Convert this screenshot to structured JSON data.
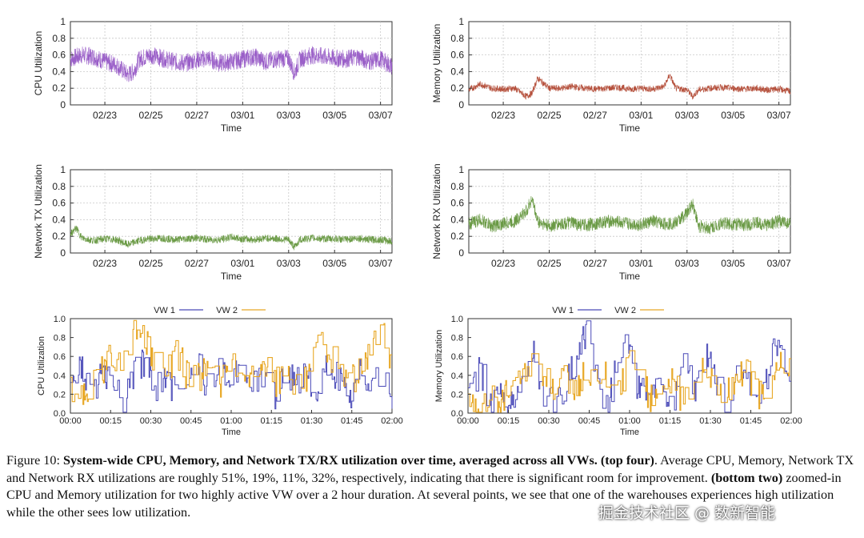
{
  "caption": {
    "label": "Figure 10:",
    "bold": "System-wide CPU, Memory, and Network TX/RX utilization over time, averaged across all VWs. (top four)",
    "part1": ". Average CPU, Memory, Network TX and Network RX utilizations are roughly 51%, 19%, 11%, 32%, respectively, indicating that there is significant room for improvement.",
    "bold2": "(bottom two)",
    "part2": "zoomed-in CPU and Memory utilization for two highly active VW over a 2 hour duration. At several points, we see that one of the warehouses experiences high utilization while the other sees low utilization."
  },
  "watermark": "掘金技术社区 @ 数新智能",
  "chart_data": [
    {
      "id": "cpu-system",
      "type": "line",
      "title": "",
      "xlabel": "Time",
      "ylabel": "CPU Utilization",
      "xlim": [
        "02/21 12:00",
        "03/07 12:00"
      ],
      "ylim": [
        0,
        1
      ],
      "x_ticks": [
        "02/23",
        "02/25",
        "02/27",
        "03/01",
        "03/03",
        "03/05",
        "03/07"
      ],
      "y_ticks": [
        "0",
        "0.2",
        "0.4",
        "0.6",
        "0.8",
        "1"
      ],
      "grid": true,
      "color": "#9a5fc8",
      "series": [
        {
          "x": [
            "02/21 12:00",
            "02/22 00:00",
            "02/22 12:00",
            "02/23 00:00",
            "02/23 12:00",
            "02/24 00:00",
            "02/24 06:00",
            "02/24 12:00",
            "02/25 00:00",
            "02/25 12:00",
            "02/26 00:00",
            "02/26 12:00",
            "02/27 00:00",
            "02/27 12:00",
            "02/28 00:00",
            "02/28 12:00",
            "03/01 00:00",
            "03/01 12:00",
            "03/02 00:00",
            "03/02 12:00",
            "03/03 00:00",
            "03/03 06:00",
            "03/03 12:00",
            "03/04 00:00",
            "03/04 12:00",
            "03/05 00:00",
            "03/05 12:00",
            "03/06 00:00",
            "03/06 12:00",
            "03/07 00:00",
            "03/07 12:00"
          ],
          "values": [
            0.55,
            0.6,
            0.58,
            0.52,
            0.48,
            0.36,
            0.4,
            0.55,
            0.6,
            0.56,
            0.52,
            0.5,
            0.54,
            0.56,
            0.5,
            0.52,
            0.55,
            0.58,
            0.52,
            0.55,
            0.56,
            0.38,
            0.55,
            0.6,
            0.58,
            0.56,
            0.55,
            0.58,
            0.52,
            0.55,
            0.46
          ],
          "band": 0.22
        }
      ]
    },
    {
      "id": "memory-system",
      "type": "line",
      "title": "",
      "xlabel": "Time",
      "ylabel": "Memory Utilization",
      "xlim": [
        "02/21 12:00",
        "03/07 12:00"
      ],
      "ylim": [
        0,
        1
      ],
      "x_ticks": [
        "02/23",
        "02/25",
        "02/27",
        "03/01",
        "03/03",
        "03/05",
        "03/07"
      ],
      "y_ticks": [
        "0",
        "0.2",
        "0.4",
        "0.6",
        "0.8",
        "1"
      ],
      "grid": true,
      "color": "#b5503c",
      "series": [
        {
          "x": [
            "02/21 12:00",
            "02/22 00:00",
            "02/22 12:00",
            "02/23 00:00",
            "02/23 12:00",
            "02/24 00:00",
            "02/24 06:00",
            "02/24 12:00",
            "02/25 00:00",
            "02/25 12:00",
            "02/26 00:00",
            "02/26 12:00",
            "02/27 00:00",
            "02/27 12:00",
            "02/28 00:00",
            "02/28 12:00",
            "03/01 00:00",
            "03/01 12:00",
            "03/02 00:00",
            "03/02 06:00",
            "03/02 12:00",
            "03/03 00:00",
            "03/03 06:00",
            "03/03 12:00",
            "03/04 00:00",
            "03/04 12:00",
            "03/05 00:00",
            "03/05 12:00",
            "03/06 00:00",
            "03/06 12:00",
            "03/07 00:00",
            "03/07 12:00"
          ],
          "values": [
            0.18,
            0.25,
            0.2,
            0.19,
            0.2,
            0.1,
            0.14,
            0.32,
            0.2,
            0.2,
            0.22,
            0.2,
            0.19,
            0.2,
            0.21,
            0.19,
            0.2,
            0.19,
            0.22,
            0.36,
            0.2,
            0.18,
            0.1,
            0.18,
            0.2,
            0.21,
            0.2,
            0.19,
            0.2,
            0.18,
            0.19,
            0.16
          ],
          "band": 0.08
        }
      ]
    },
    {
      "id": "network-tx-system",
      "type": "line",
      "title": "",
      "xlabel": "Time",
      "ylabel": "Network TX Utilization",
      "xlim": [
        "02/21 12:00",
        "03/07 12:00"
      ],
      "ylim": [
        0,
        1
      ],
      "x_ticks": [
        "02/23",
        "02/25",
        "02/27",
        "03/01",
        "03/03",
        "03/05",
        "03/07"
      ],
      "y_ticks": [
        "0",
        "0.2",
        "0.4",
        "0.6",
        "0.8",
        "1"
      ],
      "grid": true,
      "color": "#6a9a45",
      "series": [
        {
          "x": [
            "02/21 12:00",
            "02/21 18:00",
            "02/22 00:00",
            "02/22 12:00",
            "02/23 00:00",
            "02/23 12:00",
            "02/24 00:00",
            "02/24 12:00",
            "02/25 00:00",
            "02/25 12:00",
            "02/26 00:00",
            "02/26 12:00",
            "02/27 00:00",
            "02/27 12:00",
            "02/28 00:00",
            "02/28 12:00",
            "03/01 00:00",
            "03/01 12:00",
            "03/02 00:00",
            "03/02 12:00",
            "03/03 00:00",
            "03/03 06:00",
            "03/03 12:00",
            "03/04 00:00",
            "03/04 12:00",
            "03/05 00:00",
            "03/05 12:00",
            "03/06 00:00",
            "03/06 12:00",
            "03/07 00:00",
            "03/07 12:00"
          ],
          "values": [
            0.22,
            0.3,
            0.18,
            0.15,
            0.17,
            0.16,
            0.1,
            0.15,
            0.17,
            0.18,
            0.16,
            0.17,
            0.18,
            0.16,
            0.16,
            0.19,
            0.17,
            0.16,
            0.18,
            0.17,
            0.16,
            0.07,
            0.16,
            0.18,
            0.17,
            0.17,
            0.16,
            0.18,
            0.16,
            0.16,
            0.14
          ],
          "band": 0.09
        }
      ]
    },
    {
      "id": "network-rx-system",
      "type": "line",
      "title": "",
      "xlabel": "Time",
      "ylabel": "Network RX Utilization",
      "xlim": [
        "02/21 12:00",
        "03/07 12:00"
      ],
      "ylim": [
        0,
        1
      ],
      "x_ticks": [
        "02/23",
        "02/25",
        "02/27",
        "03/01",
        "03/03",
        "03/05",
        "03/07"
      ],
      "y_ticks": [
        "0",
        "0.2",
        "0.4",
        "0.6",
        "0.8",
        "1"
      ],
      "grid": true,
      "color": "#6a9a45",
      "series": [
        {
          "x": [
            "02/21 12:00",
            "02/22 00:00",
            "02/22 12:00",
            "02/23 00:00",
            "02/23 12:00",
            "02/24 00:00",
            "02/24 06:00",
            "02/24 12:00",
            "02/25 00:00",
            "02/25 12:00",
            "02/26 00:00",
            "02/26 12:00",
            "02/27 00:00",
            "02/27 12:00",
            "02/28 00:00",
            "02/28 12:00",
            "03/01 00:00",
            "03/01 12:00",
            "03/02 00:00",
            "03/02 12:00",
            "03/03 00:00",
            "03/03 06:00",
            "03/03 12:00",
            "03/04 00:00",
            "03/04 12:00",
            "03/05 00:00",
            "03/05 12:00",
            "03/06 00:00",
            "03/06 12:00",
            "03/07 00:00",
            "03/07 12:00"
          ],
          "values": [
            0.35,
            0.4,
            0.32,
            0.35,
            0.38,
            0.5,
            0.65,
            0.38,
            0.32,
            0.35,
            0.36,
            0.33,
            0.35,
            0.38,
            0.37,
            0.35,
            0.34,
            0.38,
            0.35,
            0.36,
            0.48,
            0.6,
            0.32,
            0.3,
            0.36,
            0.35,
            0.34,
            0.36,
            0.34,
            0.38,
            0.36
          ],
          "band": 0.16
        }
      ]
    },
    {
      "id": "cpu-vw",
      "type": "line",
      "title": "",
      "xlabel": "Time",
      "ylabel": "CPU Utilization",
      "xlim": [
        "00:00",
        "02:00"
      ],
      "ylim": [
        0,
        1
      ],
      "x_ticks": [
        "00:00",
        "00:15",
        "00:30",
        "00:45",
        "01:00",
        "01:15",
        "01:30",
        "01:45",
        "02:00"
      ],
      "y_ticks": [
        "0.0",
        "0.2",
        "0.4",
        "0.6",
        "0.8",
        "1.0"
      ],
      "grid": false,
      "legend": "top",
      "series": [
        {
          "name": "VW 1",
          "color": "#4a4ab8",
          "minutes": [
            0,
            4,
            8,
            12,
            16,
            20,
            24,
            28,
            32,
            36,
            40,
            44,
            48,
            52,
            56,
            60,
            64,
            68,
            72,
            76,
            80,
            84,
            88,
            92,
            96,
            100,
            104,
            108,
            112,
            116,
            120
          ],
          "values": [
            0.35,
            0.45,
            0.2,
            0.5,
            0.3,
            0.15,
            0.45,
            0.55,
            0.25,
            0.4,
            0.1,
            0.3,
            0.5,
            0.2,
            0.45,
            0.35,
            0.55,
            0.25,
            0.4,
            0.15,
            0.5,
            0.3,
            0.45,
            0.2,
            0.55,
            0.35,
            0.15,
            0.45,
            0.3,
            0.4,
            0.2
          ]
        },
        {
          "name": "VW 2",
          "color": "#e8a826",
          "minutes": [
            0,
            4,
            8,
            12,
            16,
            20,
            24,
            28,
            32,
            36,
            40,
            44,
            48,
            52,
            56,
            60,
            64,
            68,
            72,
            76,
            80,
            84,
            88,
            92,
            96,
            100,
            104,
            108,
            112,
            116,
            120
          ],
          "values": [
            0.25,
            0.2,
            0.3,
            0.45,
            0.62,
            0.62,
            0.9,
            0.75,
            0.55,
            0.45,
            0.65,
            0.35,
            0.4,
            0.5,
            0.3,
            0.45,
            0.55,
            0.35,
            0.6,
            0.3,
            0.45,
            0.35,
            0.4,
            0.8,
            0.6,
            0.5,
            0.35,
            0.45,
            0.6,
            0.95,
            0.55
          ]
        }
      ]
    },
    {
      "id": "memory-vw",
      "type": "line",
      "title": "",
      "xlabel": "Time",
      "ylabel": "Memory Utilization",
      "xlim": [
        "00:00",
        "02:00"
      ],
      "ylim": [
        0,
        1
      ],
      "x_ticks": [
        "00:00",
        "00:15",
        "00:30",
        "00:45",
        "01:00",
        "01:15",
        "01:30",
        "01:45",
        "02:00"
      ],
      "y_ticks": [
        "0.0",
        "0.2",
        "0.4",
        "0.6",
        "0.8",
        "1.0"
      ],
      "grid": false,
      "legend": "top",
      "series": [
        {
          "name": "VW 1",
          "color": "#4a4ab8",
          "minutes": [
            0,
            4,
            8,
            12,
            16,
            20,
            24,
            28,
            32,
            36,
            40,
            44,
            48,
            52,
            56,
            60,
            64,
            68,
            72,
            76,
            80,
            84,
            88,
            92,
            96,
            100,
            104,
            108,
            112,
            116,
            120
          ],
          "values": [
            0.1,
            0.5,
            0.15,
            0.25,
            0.05,
            0.5,
            0.65,
            0.2,
            0.1,
            0.3,
            0.55,
            0.85,
            0.25,
            0.05,
            0.75,
            0.6,
            0.15,
            0.4,
            0.2,
            0.05,
            0.6,
            0.2,
            0.65,
            0.35,
            0.1,
            0.55,
            0.3,
            0.05,
            0.55,
            0.75,
            0.2
          ]
        },
        {
          "name": "VW 2",
          "color": "#e8a826",
          "minutes": [
            0,
            4,
            8,
            12,
            16,
            20,
            24,
            28,
            32,
            36,
            40,
            44,
            48,
            52,
            56,
            60,
            64,
            68,
            72,
            76,
            80,
            84,
            88,
            92,
            96,
            100,
            104,
            108,
            112,
            116,
            120
          ],
          "values": [
            0.15,
            0.05,
            0.2,
            0.1,
            0.35,
            0.35,
            0.5,
            0.35,
            0.25,
            0.45,
            0.15,
            0.5,
            0.3,
            0.45,
            0.2,
            0.55,
            0.35,
            0.15,
            0.25,
            0.4,
            0.05,
            0.45,
            0.5,
            0.3,
            0.2,
            0.45,
            0.4,
            0.2,
            0.35,
            0.5,
            0.4
          ]
        }
      ]
    }
  ]
}
